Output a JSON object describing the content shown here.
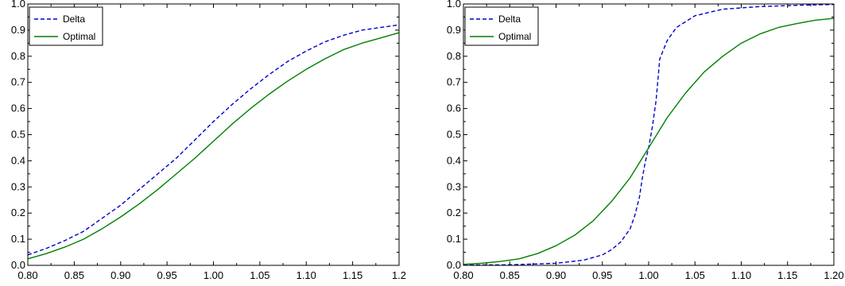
{
  "chart_data": [
    {
      "type": "line",
      "title": "",
      "xlabel": "",
      "ylabel": "",
      "xlim": [
        0.8,
        1.2
      ],
      "ylim": [
        0.0,
        1.0
      ],
      "grid": false,
      "legend_position": "top-left",
      "x_ticks": [
        "0.80",
        "0.85",
        "0.90",
        "0.95",
        "1.00",
        "1.05",
        "1.10",
        "1.15",
        "1.2"
      ],
      "y_ticks": [
        "0.0",
        "0.1",
        "0.2",
        "0.3",
        "0.4",
        "0.5",
        "0.6",
        "0.7",
        "0.8",
        "0.9",
        "1.0"
      ],
      "series": [
        {
          "name": "Delta",
          "color": "#0000cc",
          "style": "dashed",
          "x": [
            0.8,
            0.82,
            0.84,
            0.86,
            0.88,
            0.9,
            0.92,
            0.94,
            0.96,
            0.98,
            1.0,
            1.02,
            1.04,
            1.06,
            1.08,
            1.1,
            1.12,
            1.14,
            1.16,
            1.18,
            1.2
          ],
          "y": [
            0.04,
            0.065,
            0.095,
            0.13,
            0.18,
            0.23,
            0.29,
            0.35,
            0.41,
            0.48,
            0.55,
            0.615,
            0.675,
            0.73,
            0.78,
            0.82,
            0.855,
            0.88,
            0.9,
            0.91,
            0.92
          ]
        },
        {
          "name": "Optimal",
          "color": "#008000",
          "style": "solid",
          "x": [
            0.8,
            0.82,
            0.84,
            0.86,
            0.88,
            0.9,
            0.92,
            0.94,
            0.96,
            0.98,
            1.0,
            1.02,
            1.04,
            1.06,
            1.08,
            1.1,
            1.12,
            1.14,
            1.16,
            1.18,
            1.2
          ],
          "y": [
            0.025,
            0.045,
            0.07,
            0.1,
            0.14,
            0.185,
            0.235,
            0.29,
            0.35,
            0.41,
            0.475,
            0.54,
            0.6,
            0.655,
            0.705,
            0.75,
            0.79,
            0.825,
            0.85,
            0.87,
            0.89
          ]
        }
      ]
    },
    {
      "type": "line",
      "title": "",
      "xlabel": "",
      "ylabel": "",
      "xlim": [
        0.8,
        1.2
      ],
      "ylim": [
        0.0,
        1.0
      ],
      "grid": false,
      "legend_position": "top-left",
      "x_ticks": [
        "0.80",
        "0.85",
        "0.90",
        "0.95",
        "1.00",
        "1.05",
        "1.10",
        "1.15",
        "1.20"
      ],
      "y_ticks": [
        "0.0",
        "0.1",
        "0.2",
        "0.3",
        "0.4",
        "0.5",
        "0.6",
        "0.7",
        "0.8",
        "0.9",
        "1.0"
      ],
      "series": [
        {
          "name": "Delta",
          "color": "#0000cc",
          "style": "dashed",
          "x": [
            0.8,
            0.85,
            0.9,
            0.93,
            0.95,
            0.96,
            0.97,
            0.98,
            0.985,
            0.99,
            0.993,
            0.996,
            1.0,
            1.004,
            1.008,
            1.012,
            1.02,
            1.03,
            1.05,
            1.08,
            1.12,
            1.16,
            1.2
          ],
          "y": [
            0.001,
            0.002,
            0.008,
            0.02,
            0.04,
            0.06,
            0.09,
            0.14,
            0.19,
            0.26,
            0.33,
            0.39,
            0.45,
            0.53,
            0.63,
            0.79,
            0.86,
            0.91,
            0.955,
            0.98,
            0.99,
            0.995,
            0.998
          ]
        },
        {
          "name": "Optimal",
          "color": "#008000",
          "style": "solid",
          "x": [
            0.8,
            0.82,
            0.84,
            0.86,
            0.88,
            0.9,
            0.92,
            0.94,
            0.96,
            0.98,
            1.0,
            1.02,
            1.04,
            1.06,
            1.08,
            1.1,
            1.12,
            1.14,
            1.16,
            1.18,
            1.2
          ],
          "y": [
            0.004,
            0.008,
            0.015,
            0.025,
            0.045,
            0.075,
            0.115,
            0.17,
            0.245,
            0.335,
            0.45,
            0.565,
            0.66,
            0.74,
            0.8,
            0.85,
            0.885,
            0.91,
            0.925,
            0.938,
            0.945
          ]
        }
      ]
    }
  ]
}
